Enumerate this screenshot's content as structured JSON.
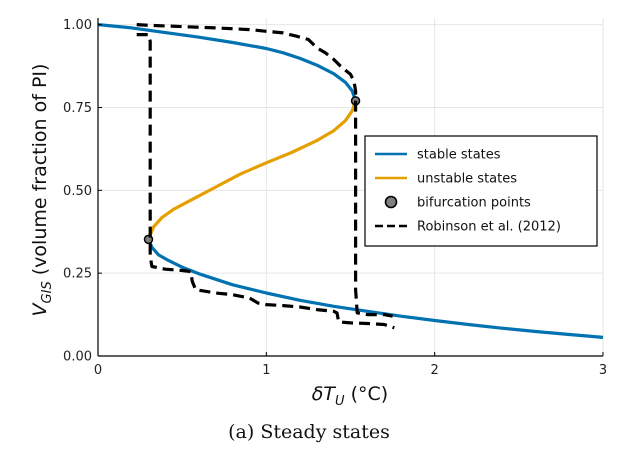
{
  "chart_data": {
    "type": "line",
    "xlim": [
      0,
      3
    ],
    "ylim": [
      0,
      1.02
    ],
    "x_ticks": [
      0,
      1,
      2,
      3
    ],
    "x_tick_labels": [
      "0",
      "1",
      "2",
      "3"
    ],
    "y_ticks": [
      0,
      0.25,
      0.5,
      0.75,
      1.0
    ],
    "y_tick_labels": [
      "0.00",
      "0.25",
      "0.50",
      "0.75",
      "1.00"
    ],
    "grid": true,
    "legend_position": "right",
    "xlabel_parts": [
      "δT",
      "U",
      " (°C)"
    ],
    "ylabel_parts": [
      "V",
      "GIS",
      " (volume fraction of PI)"
    ],
    "caption": "(a) Steady states",
    "series": [
      {
        "name": "stable states",
        "color": "#0072b2",
        "segments": [
          [
            [
              0.0,
              1.0
            ],
            [
              0.2,
              0.99
            ],
            [
              0.4,
              0.976
            ],
            [
              0.6,
              0.962
            ],
            [
              0.8,
              0.946
            ],
            [
              1.0,
              0.928
            ],
            [
              1.1,
              0.915
            ],
            [
              1.2,
              0.898
            ],
            [
              1.3,
              0.878
            ],
            [
              1.4,
              0.852
            ],
            [
              1.47,
              0.826
            ],
            [
              1.51,
              0.8
            ],
            [
              1.53,
              0.77
            ]
          ],
          [
            [
              0.3,
              0.352
            ],
            [
              0.32,
              0.328
            ],
            [
              0.36,
              0.305
            ],
            [
              0.42,
              0.288
            ],
            [
              0.5,
              0.268
            ],
            [
              0.6,
              0.248
            ],
            [
              0.8,
              0.215
            ],
            [
              1.0,
              0.19
            ],
            [
              1.2,
              0.168
            ],
            [
              1.4,
              0.15
            ],
            [
              1.6,
              0.135
            ],
            [
              1.8,
              0.12
            ],
            [
              2.0,
              0.107
            ],
            [
              2.2,
              0.095
            ],
            [
              2.4,
              0.084
            ],
            [
              2.6,
              0.074
            ],
            [
              2.8,
              0.065
            ],
            [
              3.0,
              0.056
            ]
          ]
        ]
      },
      {
        "name": "unstable states",
        "color": "#e69f00",
        "segments": [
          [
            [
              0.3,
              0.352
            ],
            [
              0.33,
              0.39
            ],
            [
              0.38,
              0.418
            ],
            [
              0.45,
              0.443
            ],
            [
              0.55,
              0.47
            ],
            [
              0.7,
              0.51
            ],
            [
              0.85,
              0.55
            ],
            [
              1.0,
              0.583
            ],
            [
              1.15,
              0.614
            ],
            [
              1.3,
              0.65
            ],
            [
              1.4,
              0.68
            ],
            [
              1.47,
              0.71
            ],
            [
              1.51,
              0.74
            ],
            [
              1.53,
              0.77
            ]
          ]
        ]
      },
      {
        "name": "bifurcation points",
        "color": "#808080",
        "points": [
          [
            0.3,
            0.352
          ],
          [
            1.53,
            0.77
          ]
        ]
      },
      {
        "name": "Robinson et al. (2012)",
        "color": "#000000",
        "segments": [
          [
            [
              0.23,
              1.0
            ],
            [
              0.3,
              0.998
            ],
            [
              0.5,
              0.994
            ],
            [
              0.7,
              0.99
            ],
            [
              0.9,
              0.985
            ],
            [
              1.0,
              0.98
            ],
            [
              1.1,
              0.975
            ],
            [
              1.18,
              0.965
            ],
            [
              1.25,
              0.955
            ],
            [
              1.3,
              0.93
            ],
            [
              1.35,
              0.915
            ],
            [
              1.4,
              0.895
            ],
            [
              1.45,
              0.87
            ],
            [
              1.5,
              0.85
            ],
            [
              1.52,
              0.83
            ],
            [
              1.53,
              0.8
            ],
            [
              1.53,
              0.77
            ],
            [
              1.53,
              0.6
            ],
            [
              1.53,
              0.4
            ],
            [
              1.53,
              0.2
            ],
            [
              1.54,
              0.13
            ],
            [
              1.6,
              0.125
            ],
            [
              1.7,
              0.125
            ],
            [
              1.75,
              0.12
            ]
          ],
          [
            [
              0.23,
              0.97
            ],
            [
              0.3,
              0.97
            ],
            [
              0.31,
              0.95
            ],
            [
              0.31,
              0.8
            ],
            [
              0.31,
              0.6
            ],
            [
              0.31,
              0.4
            ],
            [
              0.31,
              0.3
            ],
            [
              0.32,
              0.27
            ],
            [
              0.4,
              0.262
            ],
            [
              0.5,
              0.258
            ],
            [
              0.55,
              0.255
            ],
            [
              0.56,
              0.225
            ],
            [
              0.58,
              0.2
            ],
            [
              0.7,
              0.19
            ],
            [
              0.8,
              0.185
            ],
            [
              0.9,
              0.175
            ],
            [
              0.95,
              0.16
            ],
            [
              1.0,
              0.155
            ],
            [
              1.1,
              0.152
            ],
            [
              1.2,
              0.148
            ],
            [
              1.3,
              0.14
            ],
            [
              1.4,
              0.135
            ],
            [
              1.42,
              0.13
            ],
            [
              1.43,
              0.103
            ],
            [
              1.5,
              0.1
            ],
            [
              1.6,
              0.098
            ],
            [
              1.7,
              0.095
            ],
            [
              1.76,
              0.085
            ]
          ]
        ]
      }
    ]
  }
}
